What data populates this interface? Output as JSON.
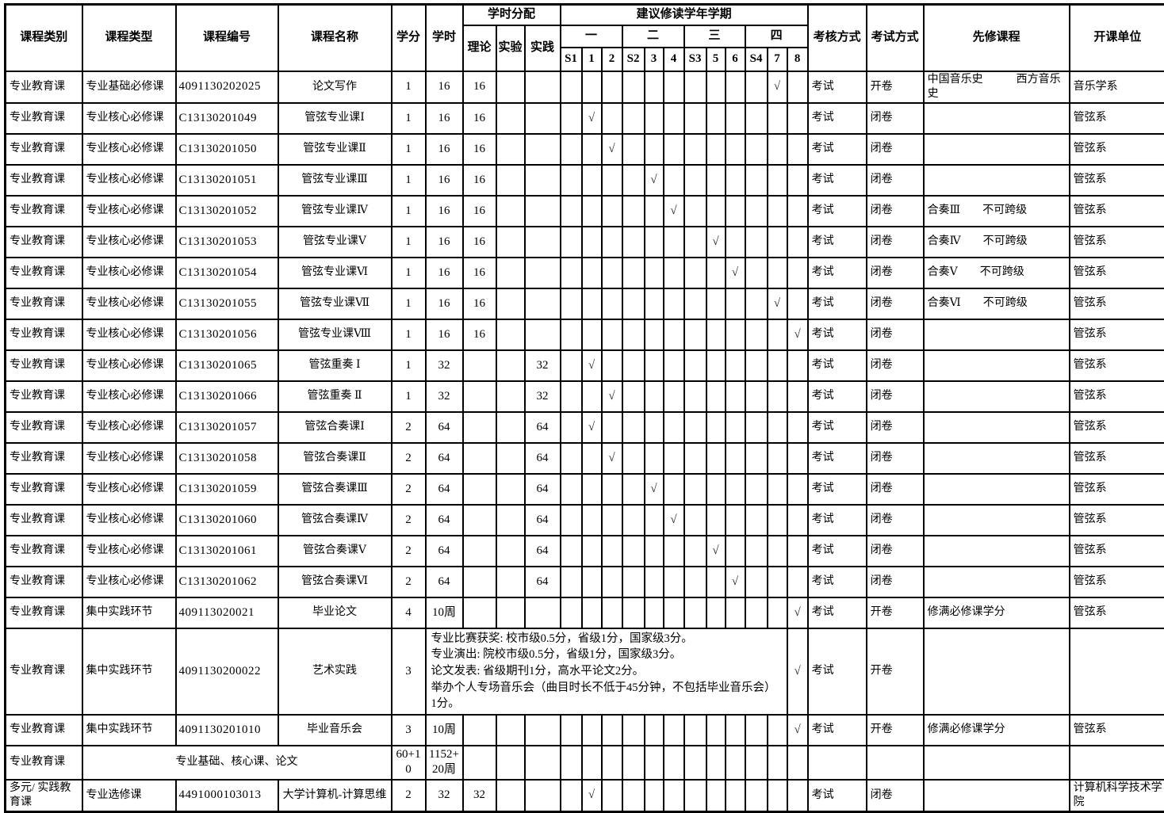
{
  "table": {
    "check_glyph": "√",
    "header": {
      "category": "课程类别",
      "type": "课程类型",
      "code": "课程编号",
      "name": "课程名称",
      "credits": "学分",
      "hours": "学时",
      "hours_alloc": "学时分配",
      "theory": "理论",
      "lab": "实验",
      "practice": "实践",
      "semester_title": "建议修读学年学期",
      "year_groups": [
        "一",
        "二",
        "三",
        "四"
      ],
      "semester_cols": [
        "S1",
        "1",
        "2",
        "S2",
        "3",
        "4",
        "S3",
        "5",
        "6",
        "S4",
        "7",
        "8"
      ],
      "assess": "考核方式",
      "exam": "考试方式",
      "prereq": "先修课程",
      "unit": "开课单位"
    },
    "rows": [
      {
        "category": "专业教育课",
        "type": "专业基础必修课",
        "code": "4091130202025",
        "name": "论文写作",
        "credits": "1",
        "hours": "16",
        "theory": "16",
        "lab": "",
        "practice": "",
        "checks": [
          "7"
        ],
        "assess": "考试",
        "exam": "开卷",
        "prereq": "中国音乐史　　　西方音乐史",
        "unit": "音乐学系"
      },
      {
        "category": "专业教育课",
        "type": "专业核心必修课",
        "code": "C13130201049",
        "name": "管弦专业课Ⅰ",
        "credits": "1",
        "hours": "16",
        "theory": "16",
        "lab": "",
        "practice": "",
        "checks": [
          "1"
        ],
        "assess": "考试",
        "exam": "闭卷",
        "prereq": "",
        "unit": "管弦系"
      },
      {
        "category": "专业教育课",
        "type": "专业核心必修课",
        "code": "C13130201050",
        "name": "管弦专业课Ⅱ",
        "credits": "1",
        "hours": "16",
        "theory": "16",
        "lab": "",
        "practice": "",
        "checks": [
          "2"
        ],
        "assess": "考试",
        "exam": "闭卷",
        "prereq": "",
        "unit": "管弦系"
      },
      {
        "category": "专业教育课",
        "type": "专业核心必修课",
        "code": "C13130201051",
        "name": "管弦专业课Ⅲ",
        "credits": "1",
        "hours": "16",
        "theory": "16",
        "lab": "",
        "practice": "",
        "checks": [
          "3"
        ],
        "assess": "考试",
        "exam": "闭卷",
        "prereq": "",
        "unit": "管弦系"
      },
      {
        "category": "专业教育课",
        "type": "专业核心必修课",
        "code": "C13130201052",
        "name": "管弦专业课Ⅳ",
        "credits": "1",
        "hours": "16",
        "theory": "16",
        "lab": "",
        "practice": "",
        "checks": [
          "4"
        ],
        "assess": "考试",
        "exam": "闭卷",
        "prereq": "合奏Ⅲ　　不可跨级",
        "unit": "管弦系"
      },
      {
        "category": "专业教育课",
        "type": "专业核心必修课",
        "code": "C13130201053",
        "name": "管弦专业课Ⅴ",
        "credits": "1",
        "hours": "16",
        "theory": "16",
        "lab": "",
        "practice": "",
        "checks": [
          "5"
        ],
        "assess": "考试",
        "exam": "闭卷",
        "prereq": "合奏Ⅳ　　不可跨级",
        "unit": "管弦系"
      },
      {
        "category": "专业教育课",
        "type": "专业核心必修课",
        "code": "C13130201054",
        "name": "管弦专业课Ⅵ",
        "credits": "1",
        "hours": "16",
        "theory": "16",
        "lab": "",
        "practice": "",
        "checks": [
          "6"
        ],
        "assess": "考试",
        "exam": "闭卷",
        "prereq": "合奏Ⅴ　　不可跨级",
        "unit": "管弦系"
      },
      {
        "category": "专业教育课",
        "type": "专业核心必修课",
        "code": "C13130201055",
        "name": "管弦专业课Ⅶ",
        "credits": "1",
        "hours": "16",
        "theory": "16",
        "lab": "",
        "practice": "",
        "checks": [
          "7"
        ],
        "assess": "考试",
        "exam": "闭卷",
        "prereq": "合奏Ⅵ　　不可跨级",
        "unit": "管弦系"
      },
      {
        "category": "专业教育课",
        "type": "专业核心必修课",
        "code": "C13130201056",
        "name": "管弦专业课Ⅷ",
        "credits": "1",
        "hours": "16",
        "theory": "16",
        "lab": "",
        "practice": "",
        "checks": [
          "8"
        ],
        "assess": "考试",
        "exam": "闭卷",
        "prereq": "",
        "unit": "管弦系"
      },
      {
        "category": "专业教育课",
        "type": "专业核心必修课",
        "code": "C13130201065",
        "name": "管弦重奏 Ⅰ",
        "credits": "1",
        "hours": "32",
        "theory": "",
        "lab": "",
        "practice": "32",
        "checks": [
          "1"
        ],
        "assess": "考试",
        "exam": "闭卷",
        "prereq": "",
        "unit": "管弦系"
      },
      {
        "category": "专业教育课",
        "type": "专业核心必修课",
        "code": "C13130201066",
        "name": "管弦重奏 Ⅱ",
        "credits": "1",
        "hours": "32",
        "theory": "",
        "lab": "",
        "practice": "32",
        "checks": [
          "2"
        ],
        "assess": "考试",
        "exam": "闭卷",
        "prereq": "",
        "unit": "管弦系"
      },
      {
        "category": "专业教育课",
        "type": "专业核心必修课",
        "code": "C13130201057",
        "name": "管弦合奏课Ⅰ",
        "credits": "2",
        "hours": "64",
        "theory": "",
        "lab": "",
        "practice": "64",
        "checks": [
          "1"
        ],
        "assess": "考试",
        "exam": "闭卷",
        "prereq": "",
        "unit": "管弦系"
      },
      {
        "category": "专业教育课",
        "type": "专业核心必修课",
        "code": "C13130201058",
        "name": "管弦合奏课Ⅱ",
        "credits": "2",
        "hours": "64",
        "theory": "",
        "lab": "",
        "practice": "64",
        "checks": [
          "2"
        ],
        "assess": "考试",
        "exam": "闭卷",
        "prereq": "",
        "unit": "管弦系"
      },
      {
        "category": "专业教育课",
        "type": "专业核心必修课",
        "code": "C13130201059",
        "name": "管弦合奏课Ⅲ",
        "credits": "2",
        "hours": "64",
        "theory": "",
        "lab": "",
        "practice": "64",
        "checks": [
          "3"
        ],
        "assess": "考试",
        "exam": "闭卷",
        "prereq": "",
        "unit": "管弦系"
      },
      {
        "category": "专业教育课",
        "type": "专业核心必修课",
        "code": "C13130201060",
        "name": "管弦合奏课Ⅳ",
        "credits": "2",
        "hours": "64",
        "theory": "",
        "lab": "",
        "practice": "64",
        "checks": [
          "4"
        ],
        "assess": "考试",
        "exam": "闭卷",
        "prereq": "",
        "unit": "管弦系"
      },
      {
        "category": "专业教育课",
        "type": "专业核心必修课",
        "code": "C13130201061",
        "name": "管弦合奏课Ⅴ",
        "credits": "2",
        "hours": "64",
        "theory": "",
        "lab": "",
        "practice": "64",
        "checks": [
          "5"
        ],
        "assess": "考试",
        "exam": "闭卷",
        "prereq": "",
        "unit": "管弦系"
      },
      {
        "category": "专业教育课",
        "type": "专业核心必修课",
        "code": "C13130201062",
        "name": "管弦合奏课Ⅵ",
        "credits": "2",
        "hours": "64",
        "theory": "",
        "lab": "",
        "practice": "64",
        "checks": [
          "6"
        ],
        "assess": "考试",
        "exam": "闭卷",
        "prereq": "",
        "unit": "管弦系"
      },
      {
        "category": "专业教育课",
        "type": "集中实践环节",
        "code": "409113020021",
        "name": "毕业论文",
        "credits": "4",
        "hours": "10周",
        "theory": "",
        "lab": "",
        "practice": "",
        "checks": [
          "8"
        ],
        "assess": "考试",
        "exam": "开卷",
        "prereq": "修满必修课学分",
        "unit": "管弦系"
      },
      {
        "kind": "remark",
        "category": "专业教育课",
        "type": "集中实践环节",
        "code": "4091130200022",
        "name": "艺术实践",
        "credits": "3",
        "remark": "专业比赛获奖: 校市级0.5分，省级1分，国家级3分。\n专业演出: 院校市级0.5分，省级1分，国家级3分。\n论文发表: 省级期刊1分，高水平论文2分。\n举办个人专场音乐会（曲目时长不低于45分钟，不包括毕业音乐会）1分。",
        "checks": [
          "8"
        ],
        "assess": "考试",
        "exam": "开卷",
        "prereq": "",
        "unit": ""
      },
      {
        "category": "专业教育课",
        "type": "集中实践环节",
        "code": "4091130201010",
        "name": "毕业音乐会",
        "credits": "3",
        "hours": "10周",
        "theory": "",
        "lab": "",
        "practice": "",
        "checks": [
          "8"
        ],
        "assess": "考试",
        "exam": "开卷",
        "prereq": "修满必修课学分",
        "unit": "管弦系"
      },
      {
        "kind": "summary",
        "category": "专业教育课",
        "merged": "专业基础、核心课、论文",
        "credits": "60+10",
        "hours": "1152+20周",
        "theory": "",
        "lab": "",
        "practice": "",
        "checks": [],
        "assess": "",
        "exam": "",
        "prereq": "",
        "unit": ""
      },
      {
        "category": "多元/ 实践教育课",
        "type": "专业选修课",
        "code": "4491000103013",
        "name": "大学计算机-计算思维",
        "credits": "2",
        "hours": "32",
        "theory": "32",
        "lab": "",
        "practice": "",
        "checks": [
          "1"
        ],
        "assess": "考试",
        "exam": "闭卷",
        "prereq": "",
        "unit": "计算机科学技术学院"
      }
    ]
  }
}
